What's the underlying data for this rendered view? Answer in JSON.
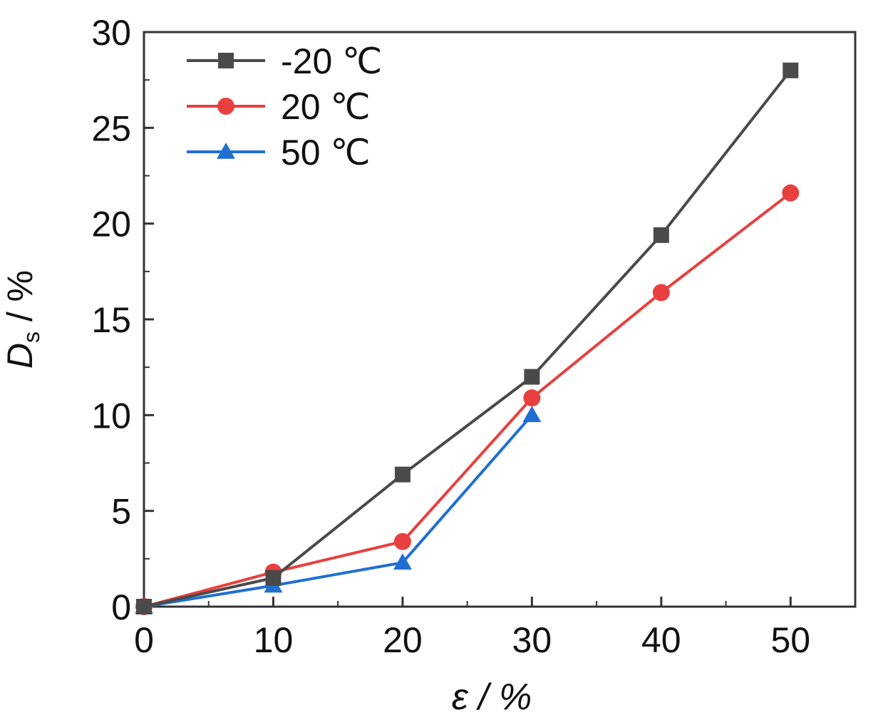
{
  "chart_data": {
    "type": "line",
    "title": "",
    "xlabel": "ε / %",
    "ylabel_main": "D",
    "ylabel_sub": "s",
    "ylabel_unit": " / %",
    "xlim": [
      0,
      55
    ],
    "ylim": [
      0,
      30
    ],
    "xticks": [
      0,
      10,
      20,
      30,
      40,
      50
    ],
    "yticks": [
      0,
      5,
      10,
      15,
      20,
      25,
      30
    ],
    "grid": false,
    "legend_position": "top-left",
    "series": [
      {
        "name": "-20 ℃",
        "color": "#4a4a4a",
        "marker": "square",
        "x": [
          0,
          10,
          20,
          30,
          40,
          50
        ],
        "y": [
          0,
          1.5,
          6.9,
          12.0,
          19.4,
          28.0
        ]
      },
      {
        "name": "20 ℃",
        "color": "#e8403f",
        "marker": "circle",
        "x": [
          0,
          10,
          20,
          30,
          40,
          50
        ],
        "y": [
          0,
          1.8,
          3.4,
          10.9,
          16.4,
          21.6
        ]
      },
      {
        "name": "50 ℃",
        "color": "#1f6fd1",
        "marker": "triangle",
        "x": [
          0,
          10,
          20,
          30
        ],
        "y": [
          0,
          1.1,
          2.3,
          10.0
        ]
      }
    ]
  }
}
